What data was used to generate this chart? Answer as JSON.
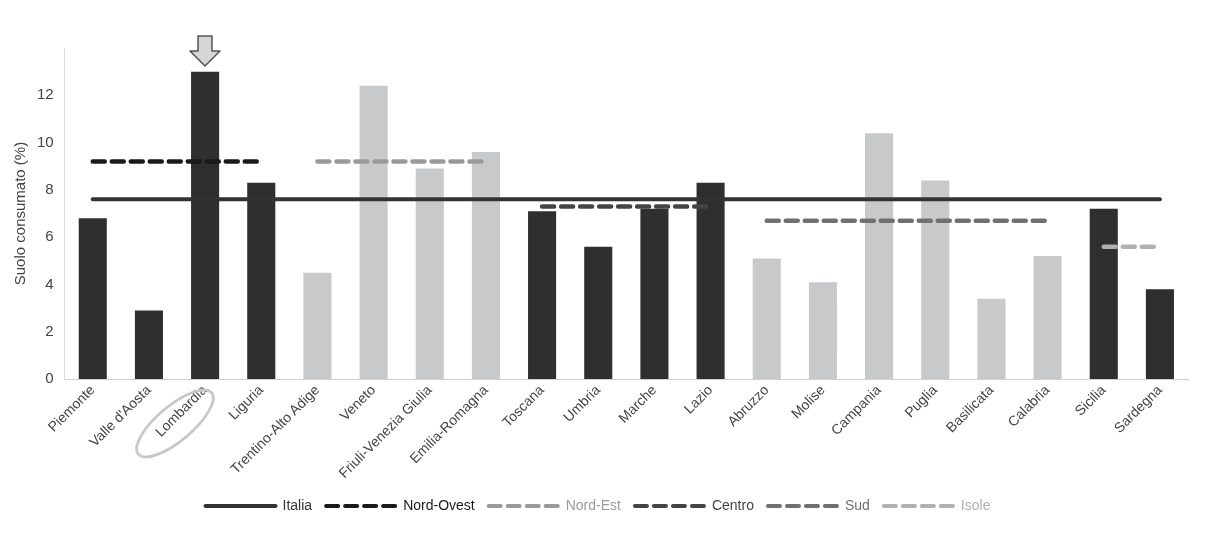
{
  "chart_data": {
    "type": "bar",
    "ylabel": "Suolo consumato (%)",
    "categories": [
      "Piemonte",
      "Valle d'Aosta",
      "Lombardia",
      "Liguria",
      "Trentino-Alto Adige",
      "Veneto",
      "Friuli-Venezia Giulia",
      "Emilia-Romagna",
      "Toscana",
      "Umbria",
      "Marche",
      "Lazio",
      "Abruzzo",
      "Molise",
      "Campania",
      "Puglia",
      "Basilicata",
      "Calabria",
      "Sicilia",
      "Sardegna"
    ],
    "ylim": [
      0,
      14
    ],
    "yticks": [
      0,
      2,
      4,
      6,
      8,
      10,
      12
    ],
    "grid": false,
    "legend": "bottom",
    "series": [
      {
        "colors": [
          "#2f2f2f",
          "#2f2f2f",
          "#2f2f2f",
          "#2f2f2f",
          "#c8c9cb",
          "#c8c9cb",
          "#c8c9cb",
          "#c8c9cb",
          "#2f2f2f",
          "#2f2f2f",
          "#2f2f2f",
          "#2f2f2f",
          "#c8c9cb",
          "#c8c9cb",
          "#c8c9cb",
          "#c8c9cb",
          "#c8c9cb",
          "#c8c9cb",
          "#2f2f2f",
          "#2f2f2f"
        ],
        "values": [
          6.8,
          2.9,
          13.0,
          8.3,
          4.5,
          12.4,
          8.9,
          9.6,
          7.1,
          5.6,
          7.2,
          8.3,
          5.1,
          4.1,
          10.4,
          8.4,
          3.4,
          5.2,
          7.2,
          3.8
        ]
      },
      {
        "type": "line",
        "name": "Italia",
        "color": "#333333",
        "line_style": "solid",
        "values": [
          7.6,
          7.6,
          7.6,
          7.6,
          7.6,
          7.6,
          7.6,
          7.6,
          7.6,
          7.6,
          7.6,
          7.6,
          7.6,
          7.6,
          7.6,
          7.6,
          7.6,
          7.6,
          7.6,
          7.6
        ]
      },
      {
        "type": "line",
        "name": "Nord-Ovest",
        "color": "#1a1a1a",
        "line_style": "dashed",
        "values": [
          9.2,
          9.2,
          9.2,
          9.2,
          null,
          null,
          null,
          null,
          null,
          null,
          null,
          null,
          null,
          null,
          null,
          null,
          null,
          null,
          null,
          null
        ]
      },
      {
        "type": "line",
        "name": "Nord-Est",
        "color": "#9a9a9a",
        "line_style": "dashed",
        "values": [
          null,
          null,
          null,
          null,
          9.2,
          9.2,
          9.2,
          9.2,
          null,
          null,
          null,
          null,
          null,
          null,
          null,
          null,
          null,
          null,
          null,
          null
        ]
      },
      {
        "type": "line",
        "name": "Centro",
        "color": "#444444",
        "line_style": "dashed",
        "values": [
          null,
          null,
          null,
          null,
          null,
          null,
          null,
          null,
          7.3,
          7.3,
          7.3,
          7.3,
          null,
          null,
          null,
          null,
          null,
          null,
          null,
          null
        ]
      },
      {
        "type": "line",
        "name": "Sud",
        "color": "#707070",
        "line_style": "dashed",
        "values": [
          null,
          null,
          null,
          null,
          null,
          null,
          null,
          null,
          null,
          null,
          null,
          null,
          6.7,
          6.7,
          6.7,
          6.7,
          6.7,
          6.7,
          null,
          null
        ]
      },
      {
        "type": "line",
        "name": "Isole",
        "color": "#b0b0b0",
        "line_style": "dashed",
        "values": [
          null,
          null,
          null,
          null,
          null,
          null,
          null,
          null,
          null,
          null,
          null,
          null,
          null,
          null,
          null,
          null,
          null,
          null,
          5.6,
          5.6
        ]
      }
    ]
  }
}
